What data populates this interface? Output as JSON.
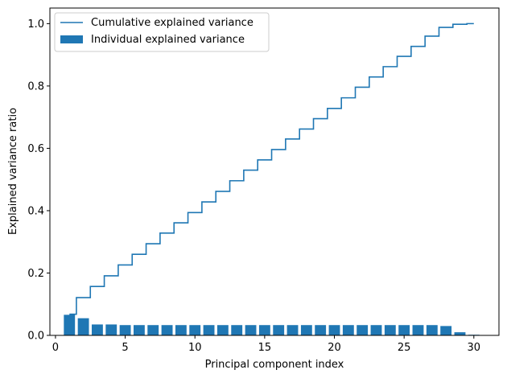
{
  "chart_data": {
    "type": "bar",
    "xlabel": "Principal component index",
    "ylabel": "Explained variance ratio",
    "xlim": [
      -0.4,
      31.8
    ],
    "ylim": [
      0,
      1.05
    ],
    "x_ticks": [
      0,
      5,
      10,
      15,
      20,
      25,
      30
    ],
    "y_ticks": [
      0.0,
      0.2,
      0.4,
      0.6,
      0.8,
      1.0
    ],
    "grid": false,
    "legend": "top-left",
    "x": [
      1,
      2,
      3,
      4,
      5,
      6,
      7,
      8,
      9,
      10,
      11,
      12,
      13,
      14,
      15,
      16,
      17,
      18,
      19,
      20,
      21,
      22,
      23,
      24,
      25,
      26,
      27,
      28,
      29,
      30
    ],
    "series": [
      {
        "name": "Individual explained variance",
        "type": "bar",
        "color": "#1f77b4",
        "values": [
          0.066,
          0.055,
          0.035,
          0.035,
          0.033,
          0.033,
          0.033,
          0.033,
          0.033,
          0.033,
          0.033,
          0.033,
          0.033,
          0.033,
          0.033,
          0.033,
          0.033,
          0.033,
          0.033,
          0.033,
          0.033,
          0.033,
          0.033,
          0.033,
          0.033,
          0.033,
          0.033,
          0.03,
          0.01,
          0.002
        ]
      },
      {
        "name": "Cumulative explained variance",
        "type": "step",
        "color": "#1f77b4",
        "values": [
          0.068,
          0.121,
          0.157,
          0.191,
          0.226,
          0.26,
          0.294,
          0.328,
          0.361,
          0.394,
          0.428,
          0.462,
          0.496,
          0.53,
          0.563,
          0.596,
          0.63,
          0.662,
          0.695,
          0.728,
          0.762,
          0.796,
          0.829,
          0.862,
          0.895,
          0.927,
          0.96,
          0.988,
          0.998,
          1.0
        ]
      }
    ]
  }
}
